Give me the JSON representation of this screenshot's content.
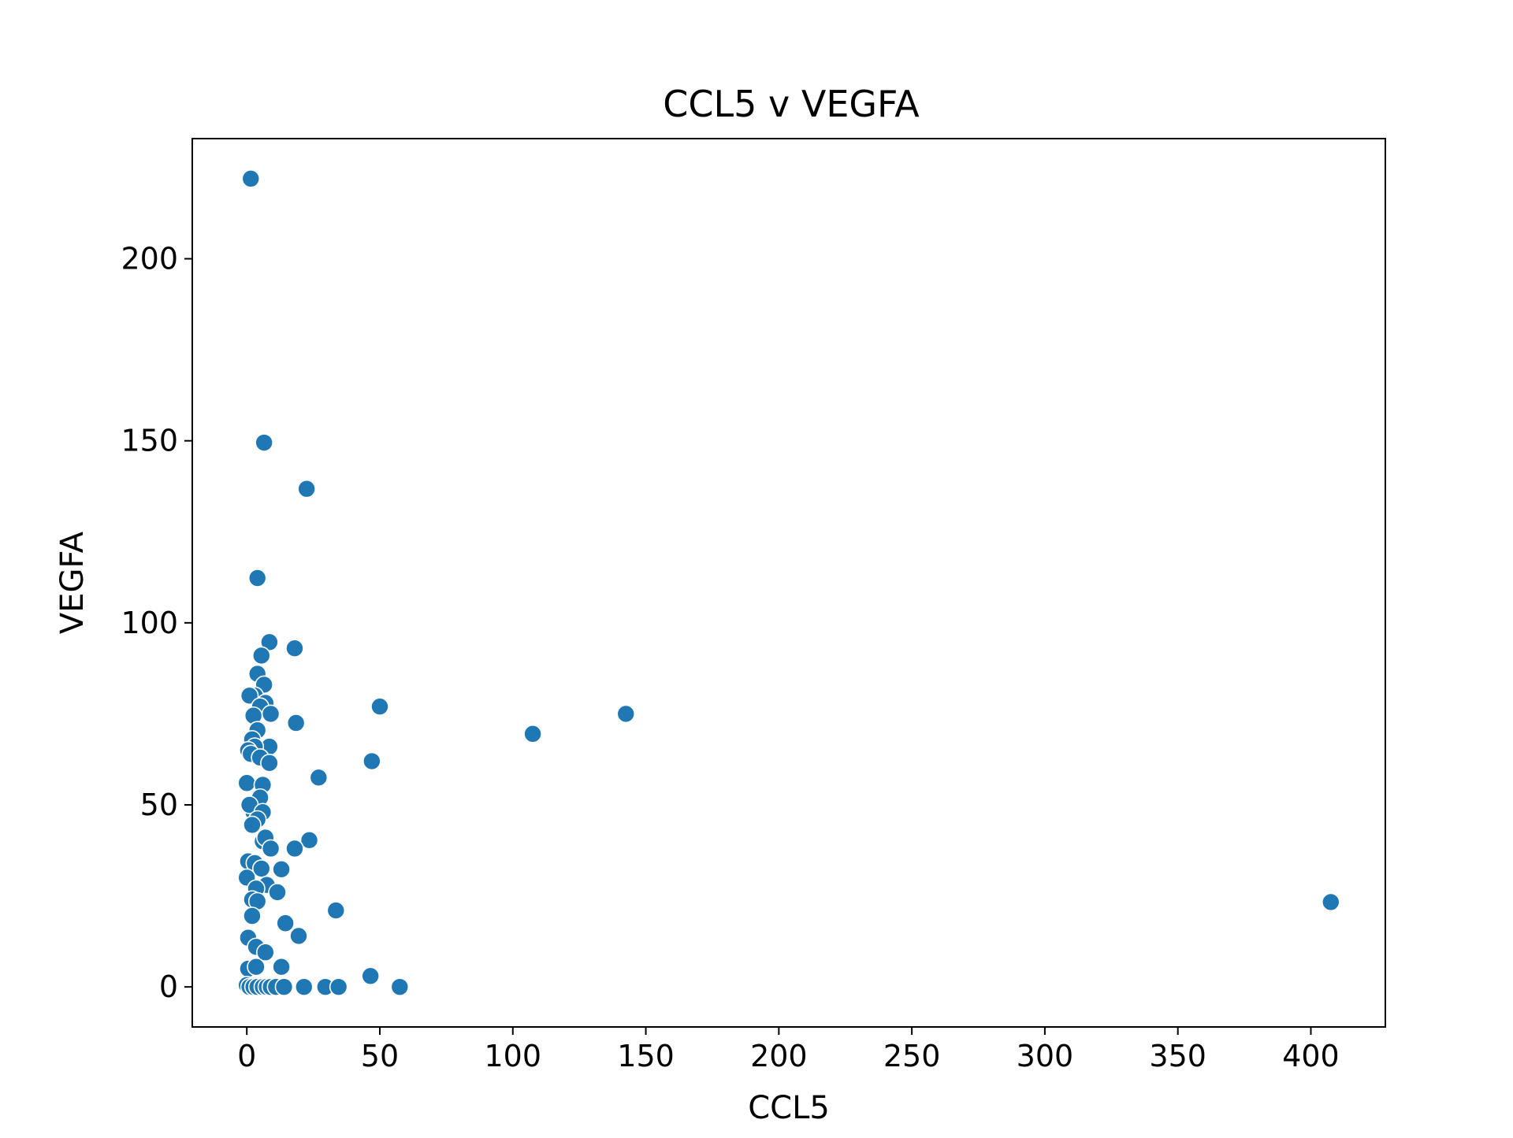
{
  "chart_data": {
    "type": "scatter",
    "title": "CCL5 v VEGFA",
    "xlabel": "CCL5",
    "ylabel": "VEGFA",
    "xlim": [
      -20.5,
      428
    ],
    "ylim": [
      -11,
      233
    ],
    "xticks": [
      0,
      50,
      100,
      150,
      200,
      250,
      300,
      350,
      400
    ],
    "yticks": [
      0,
      50,
      100,
      150,
      200
    ],
    "xtick_labels": [
      "0",
      "50",
      "100",
      "150",
      "200",
      "250",
      "300",
      "350",
      "400"
    ],
    "ytick_labels": [
      "0",
      "50",
      "100",
      "150",
      "200"
    ],
    "grid": false,
    "colors": {
      "marker": "#1f77b4",
      "marker_edge": "#ffffff",
      "axis": "#000000"
    },
    "series": [
      {
        "points": [
          [
            1.5,
            222
          ],
          [
            6.5,
            149.5
          ],
          [
            22.5,
            136.8
          ],
          [
            4,
            112.3
          ],
          [
            8.5,
            94.7
          ],
          [
            5.5,
            91
          ],
          [
            18,
            93
          ],
          [
            4,
            86
          ],
          [
            6.5,
            83
          ],
          [
            3,
            80
          ],
          [
            1,
            80
          ],
          [
            7,
            78
          ],
          [
            5,
            77
          ],
          [
            9,
            75
          ],
          [
            2.5,
            74.5
          ],
          [
            4,
            70.5
          ],
          [
            50,
            77
          ],
          [
            107.5,
            69.5
          ],
          [
            142.5,
            75
          ],
          [
            18.5,
            72.5
          ],
          [
            2,
            68
          ],
          [
            8.5,
            66
          ],
          [
            3,
            66
          ],
          [
            0.5,
            65
          ],
          [
            1.5,
            64
          ],
          [
            5,
            63
          ],
          [
            8.5,
            61.5
          ],
          [
            47,
            62
          ],
          [
            27,
            57.5
          ],
          [
            0,
            56
          ],
          [
            6,
            55.5
          ],
          [
            5,
            52
          ],
          [
            2.5,
            48
          ],
          [
            1,
            50
          ],
          [
            6,
            48
          ],
          [
            4,
            46
          ],
          [
            2,
            44.5
          ],
          [
            23.5,
            40.3
          ],
          [
            6,
            40
          ],
          [
            7,
            41
          ],
          [
            18,
            38
          ],
          [
            9,
            38
          ],
          [
            0.5,
            34.5
          ],
          [
            3,
            34
          ],
          [
            5.5,
            32.5
          ],
          [
            13,
            32.3
          ],
          [
            0,
            30
          ],
          [
            7.5,
            28
          ],
          [
            3.5,
            27
          ],
          [
            11.5,
            26
          ],
          [
            2,
            24
          ],
          [
            4,
            23.5
          ],
          [
            33.5,
            21
          ],
          [
            2,
            19.5
          ],
          [
            14.5,
            17.5
          ],
          [
            19.5,
            14
          ],
          [
            0.5,
            13.5
          ],
          [
            3.5,
            11
          ],
          [
            7,
            9.5
          ],
          [
            0.5,
            5
          ],
          [
            3.5,
            5.5
          ],
          [
            13,
            5.5
          ],
          [
            46.5,
            3
          ],
          [
            0,
            0.5
          ],
          [
            1,
            0
          ],
          [
            2.5,
            0
          ],
          [
            4,
            0
          ],
          [
            6,
            0
          ],
          [
            7.5,
            0
          ],
          [
            9,
            0
          ],
          [
            11,
            0
          ],
          [
            14,
            0
          ],
          [
            21.5,
            0
          ],
          [
            29.5,
            0
          ],
          [
            34.5,
            0
          ],
          [
            57.5,
            0
          ],
          [
            407.5,
            23.3
          ]
        ]
      }
    ]
  }
}
